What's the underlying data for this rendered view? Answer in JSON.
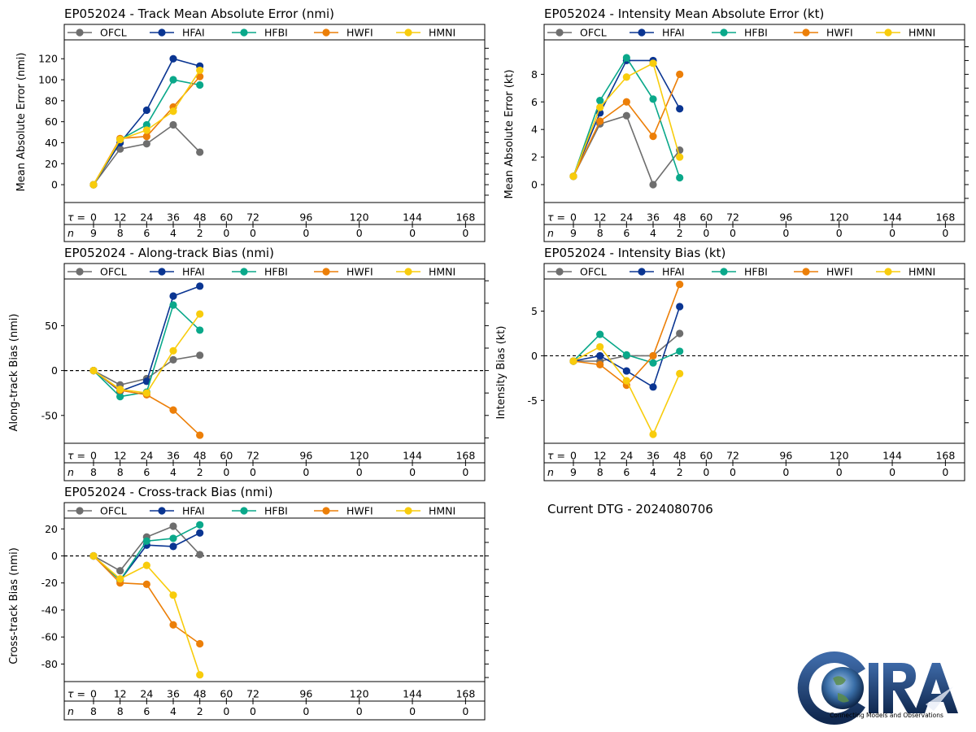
{
  "colors": {
    "OFCL": "#6e6e6e",
    "HFAI": "#0a3592",
    "HFBI": "#0aa88a",
    "HWFI": "#ec7f08",
    "HMNI": "#f8cc0c"
  },
  "tau_label": "τ = ",
  "n_label": "n",
  "dtg_text": "Current DTG - 2024080706",
  "logo": {
    "text": "CIRA",
    "subtitle": "Connecting Models and Observations"
  },
  "chart_data": [
    {
      "id": "track-mae",
      "type": "line",
      "title": "EP052024 - Track Mean Absolute Error (nmi)",
      "ylabel": "Mean Absolute Error (nmi)",
      "ylim": [
        -17,
        138
      ],
      "yticks": [
        0,
        20,
        40,
        60,
        80,
        100,
        120
      ],
      "zero_line": false,
      "legend": "top",
      "tau": [
        0,
        12,
        24,
        36,
        48,
        60,
        72,
        96,
        120,
        144,
        168
      ],
      "n": [
        9,
        8,
        6,
        4,
        2,
        0,
        0,
        0,
        0,
        0,
        0
      ],
      "x": [
        0,
        12,
        24,
        36,
        48
      ],
      "series": [
        {
          "name": "OFCL",
          "values": [
            0,
            34,
            39,
            57,
            31
          ]
        },
        {
          "name": "HFAI",
          "values": [
            0,
            40,
            71,
            120,
            113
          ]
        },
        {
          "name": "HFBI",
          "values": [
            0,
            43,
            57,
            100,
            95
          ]
        },
        {
          "name": "HWFI",
          "values": [
            0,
            44,
            46,
            74,
            103
          ]
        },
        {
          "name": "HMNI",
          "values": [
            0,
            43,
            52,
            70,
            109
          ]
        }
      ]
    },
    {
      "id": "intensity-mae",
      "type": "line",
      "title": "EP052024 - Intensity Mean Absolute Error (kt)",
      "ylabel": "Mean Absolute Error (kt)",
      "ylim": [
        -1.3,
        10.5
      ],
      "yticks": [
        0,
        2,
        4,
        6,
        8
      ],
      "zero_line": false,
      "legend": "top",
      "tau": [
        0,
        12,
        24,
        36,
        48,
        60,
        72,
        96,
        120,
        144,
        168
      ],
      "n": [
        9,
        8,
        6,
        4,
        2,
        0,
        0,
        0,
        0,
        0,
        0
      ],
      "x": [
        0,
        12,
        24,
        36,
        48
      ],
      "series": [
        {
          "name": "OFCL",
          "values": [
            0.6,
            4.4,
            5.0,
            0.0,
            2.5
          ]
        },
        {
          "name": "HFAI",
          "values": [
            0.6,
            5.2,
            9.0,
            9.0,
            5.5
          ]
        },
        {
          "name": "HFBI",
          "values": [
            0.6,
            6.1,
            9.2,
            6.2,
            0.5
          ]
        },
        {
          "name": "HWFI",
          "values": [
            0.6,
            4.6,
            6.0,
            3.5,
            8.0
          ]
        },
        {
          "name": "HMNI",
          "values": [
            0.6,
            5.6,
            7.8,
            8.8,
            2.0
          ]
        }
      ]
    },
    {
      "id": "along-track-bias",
      "type": "line",
      "title": "EP052024 - Along-track Bias (nmi)",
      "ylabel": "Along-track Bias (nmi)",
      "ylim": [
        -81,
        102
      ],
      "yticks": [
        -50,
        0,
        50
      ],
      "zero_line": true,
      "legend": "top",
      "tau": [
        0,
        12,
        24,
        36,
        48,
        60,
        72,
        96,
        120,
        144,
        168
      ],
      "n": [
        8,
        8,
        6,
        4,
        2,
        0,
        0,
        0,
        0,
        0,
        0
      ],
      "x": [
        0,
        12,
        24,
        36,
        48
      ],
      "series": [
        {
          "name": "OFCL",
          "values": [
            0,
            -16,
            -9,
            12,
            17
          ]
        },
        {
          "name": "HFAI",
          "values": [
            0,
            -23,
            -12,
            83,
            94
          ]
        },
        {
          "name": "HFBI",
          "values": [
            0,
            -29,
            -24,
            73,
            45
          ]
        },
        {
          "name": "HWFI",
          "values": [
            0,
            -22,
            -27,
            -44,
            -72
          ]
        },
        {
          "name": "HMNI",
          "values": [
            0,
            -21,
            -25,
            22,
            63
          ]
        }
      ]
    },
    {
      "id": "intensity-bias",
      "type": "line",
      "title": "EP052024 - Intensity Bias (kt)",
      "ylabel": "Intensity Bias (kt)",
      "ylim": [
        -9.8,
        8.6
      ],
      "yticks": [
        -5,
        0,
        5
      ],
      "zero_line": true,
      "legend": "top",
      "tau": [
        0,
        12,
        24,
        36,
        48,
        60,
        72,
        96,
        120,
        144,
        168
      ],
      "n": [
        9,
        8,
        6,
        4,
        2,
        0,
        0,
        0,
        0,
        0,
        0
      ],
      "x": [
        0,
        12,
        24,
        36,
        48
      ],
      "series": [
        {
          "name": "OFCL",
          "values": [
            -0.6,
            -0.6,
            0.0,
            0.0,
            2.5
          ]
        },
        {
          "name": "HFAI",
          "values": [
            -0.6,
            0.0,
            -1.7,
            -3.5,
            5.5
          ]
        },
        {
          "name": "HFBI",
          "values": [
            -0.6,
            2.4,
            0.1,
            -0.8,
            0.5
          ]
        },
        {
          "name": "HWFI",
          "values": [
            -0.6,
            -1.0,
            -3.3,
            0.0,
            8.0
          ]
        },
        {
          "name": "HMNI",
          "values": [
            -0.6,
            1.0,
            -2.8,
            -8.8,
            -2.0
          ]
        }
      ]
    },
    {
      "id": "cross-track-bias",
      "type": "line",
      "title": "EP052024 - Cross-track Bias (nmi)",
      "ylabel": "Cross-track Bias (nmi)",
      "ylim": [
        -93,
        28
      ],
      "yticks": [
        -80,
        -60,
        -40,
        -20,
        0,
        20
      ],
      "zero_line": true,
      "legend": "top",
      "tau": [
        0,
        12,
        24,
        36,
        48,
        60,
        72,
        96,
        120,
        144,
        168
      ],
      "n": [
        8,
        8,
        6,
        4,
        2,
        0,
        0,
        0,
        0,
        0,
        0
      ],
      "x": [
        0,
        12,
        24,
        36,
        48
      ],
      "series": [
        {
          "name": "OFCL",
          "values": [
            0,
            -11,
            14,
            22,
            1
          ]
        },
        {
          "name": "HFAI",
          "values": [
            0,
            -18,
            8,
            7,
            17
          ]
        },
        {
          "name": "HFBI",
          "values": [
            0,
            -18,
            11,
            13,
            23
          ]
        },
        {
          "name": "HWFI",
          "values": [
            0,
            -20,
            -21,
            -51,
            -65
          ]
        },
        {
          "name": "HMNI",
          "values": [
            0,
            -17,
            -7,
            -29,
            -88
          ]
        }
      ]
    }
  ]
}
